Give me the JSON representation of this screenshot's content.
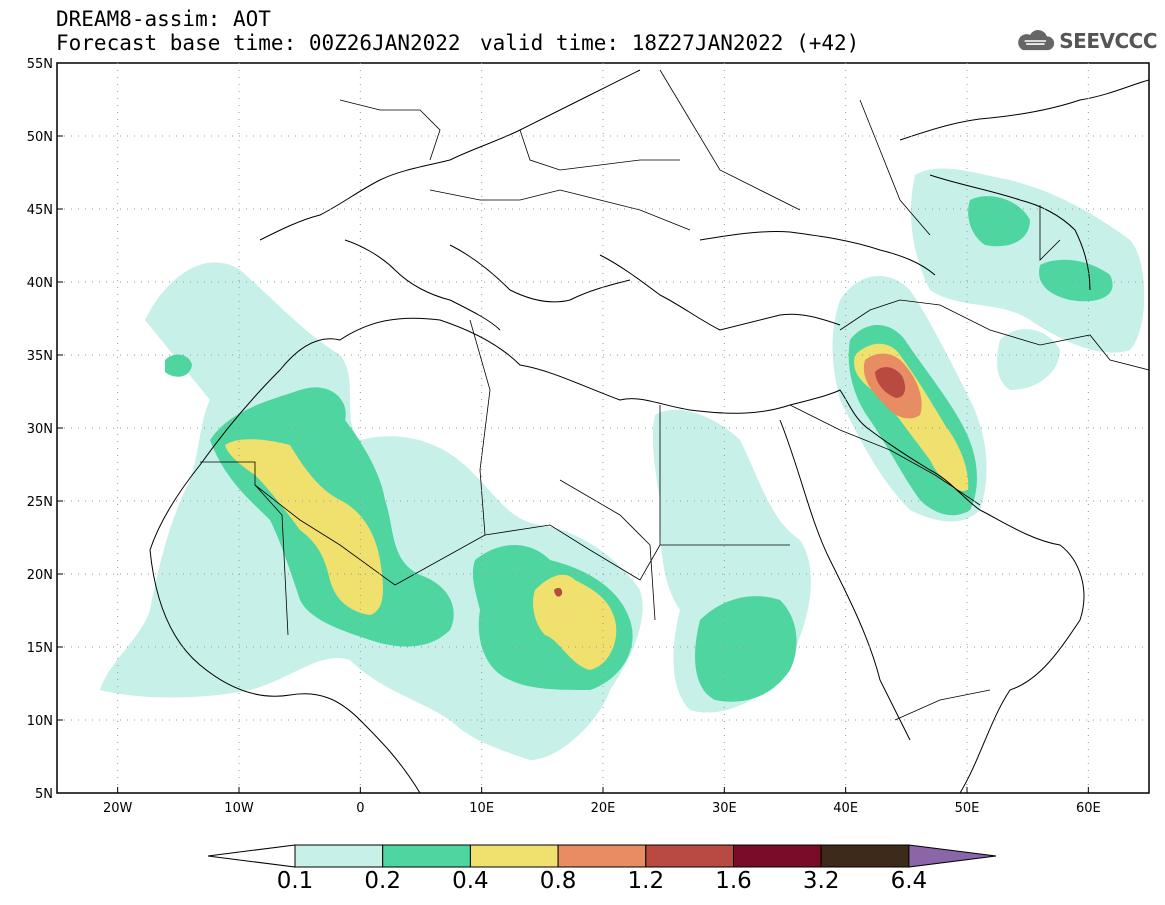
{
  "header": {
    "model": "DREAM8-assim: AOT",
    "base_time": "Forecast base time: 00Z26JAN2022",
    "valid_time": "valid time: 18Z27JAN2022 (+42)"
  },
  "logo": {
    "icon": "cloud-icon",
    "text": "SEEVCCC"
  },
  "map": {
    "lon_ticks": [
      "20W",
      "10W",
      "0",
      "10E",
      "20E",
      "30E",
      "40E",
      "50E",
      "60E"
    ],
    "lat_ticks": [
      "55N",
      "50N",
      "45N",
      "40N",
      "35N",
      "30N",
      "25N",
      "20N",
      "15N",
      "10N",
      "5N"
    ],
    "extent": {
      "lon": [
        -25,
        65
      ],
      "lat": [
        5,
        55
      ]
    }
  },
  "colorbar": {
    "labels": [
      "0.1",
      "0.2",
      "0.4",
      "0.8",
      "1.2",
      "1.6",
      "3.2",
      "6.4"
    ],
    "colors": [
      "#c6f0e8",
      "#4fd6a0",
      "#f0e06e",
      "#e88c64",
      "#b84a42",
      "#7a0c28",
      "#3e2a1a",
      "#8a66a8"
    ]
  }
}
